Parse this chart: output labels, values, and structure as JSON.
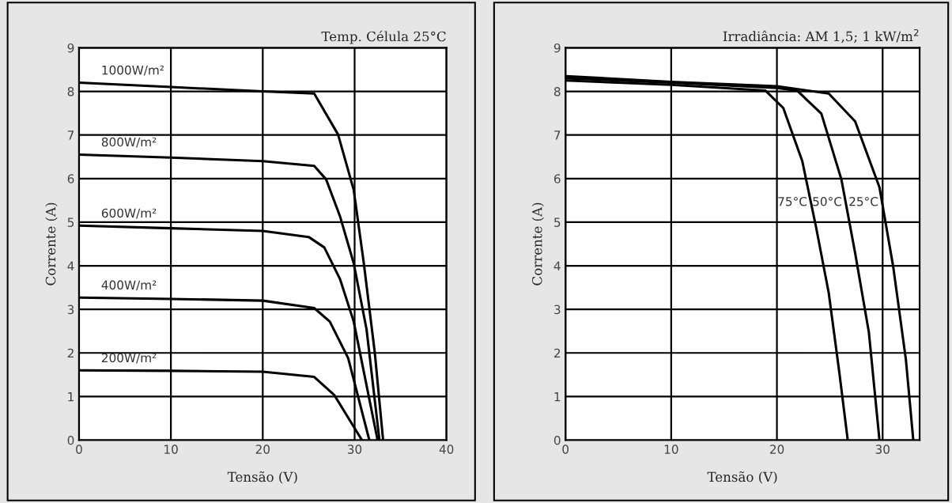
{
  "chart_data": [
    {
      "type": "line",
      "title": "Temp. Célula 25°C",
      "xlabel": "Tensão (V)",
      "ylabel": "Corrente (A)",
      "xlim": [
        0,
        40
      ],
      "ylim": [
        0,
        9
      ],
      "xticks": [
        0,
        10,
        20,
        30,
        40
      ],
      "yticks": [
        0,
        1,
        2,
        3,
        4,
        5,
        6,
        7,
        8,
        9
      ],
      "grid": true,
      "legend": false,
      "series": [
        {
          "name": "1000W/m²",
          "color": "#000000",
          "x": [
            0,
            10,
            20,
            25.6,
            28.2,
            29.9,
            31.0,
            32.2,
            33.1
          ],
          "values": [
            8.2,
            8.1,
            8.0,
            7.95,
            7.01,
            5.74,
            4.06,
            2.0,
            0
          ]
        },
        {
          "name": "800W/m²",
          "color": "#000000",
          "x": [
            0,
            10,
            20,
            25.6,
            26.9,
            28.4,
            29.9,
            31.3,
            32.7
          ],
          "values": [
            6.55,
            6.48,
            6.4,
            6.29,
            5.98,
            5.14,
            4.06,
            2.54,
            0
          ]
        },
        {
          "name": "600W/m²",
          "color": "#000000",
          "x": [
            0,
            10,
            20,
            25.0,
            26.7,
            28.4,
            29.9,
            32.5
          ],
          "values": [
            4.92,
            4.86,
            4.8,
            4.66,
            4.42,
            3.7,
            2.72,
            0
          ]
        },
        {
          "name": "400W/m²",
          "color": "#000000",
          "x": [
            0,
            10,
            20,
            25.6,
            27.3,
            29.3,
            31.6
          ],
          "values": [
            3.27,
            3.24,
            3.2,
            3.03,
            2.72,
            1.88,
            0
          ]
        },
        {
          "name": "200W/m²",
          "color": "#000000",
          "x": [
            0,
            10,
            20,
            25.6,
            27.8,
            30.8
          ],
          "values": [
            1.6,
            1.59,
            1.57,
            1.45,
            1.03,
            0
          ]
        }
      ]
    },
    {
      "type": "line",
      "title": "Irradiância: AM 1,5; 1 kW/m$^{2}$",
      "xlabel": "Tensão (V)",
      "ylabel": "Corrente (A)",
      "xlim": [
        0,
        33.5
      ],
      "ylim": [
        0,
        9
      ],
      "xticks": [
        0,
        10,
        20,
        30
      ],
      "yticks": [
        0,
        1,
        2,
        3,
        4,
        5,
        6,
        7,
        8,
        9
      ],
      "grid": true,
      "legend": false,
      "series": [
        {
          "name": "75°C",
          "color": "#000000",
          "x": [
            0,
            10,
            18.9,
            20.6,
            22.4,
            23.7,
            24.9,
            25.9,
            26.7
          ],
          "values": [
            8.25,
            8.15,
            8.02,
            7.62,
            6.4,
            4.89,
            3.38,
            1.56,
            0
          ]
        },
        {
          "name": "50°C",
          "color": "#000000",
          "x": [
            0,
            10,
            20,
            21.9,
            24.2,
            26.1,
            27.4,
            28.7,
            29.7
          ],
          "values": [
            8.3,
            8.2,
            8.08,
            8.02,
            7.49,
            5.98,
            4.29,
            2.47,
            0
          ]
        },
        {
          "name": "25°C",
          "color": "#000000",
          "x": [
            0,
            10,
            20,
            24.9,
            27.4,
            29.7,
            31.0,
            32.2,
            32.9
          ],
          "values": [
            8.35,
            8.22,
            8.12,
            7.95,
            7.31,
            5.8,
            3.98,
            1.85,
            0
          ]
        }
      ]
    }
  ]
}
